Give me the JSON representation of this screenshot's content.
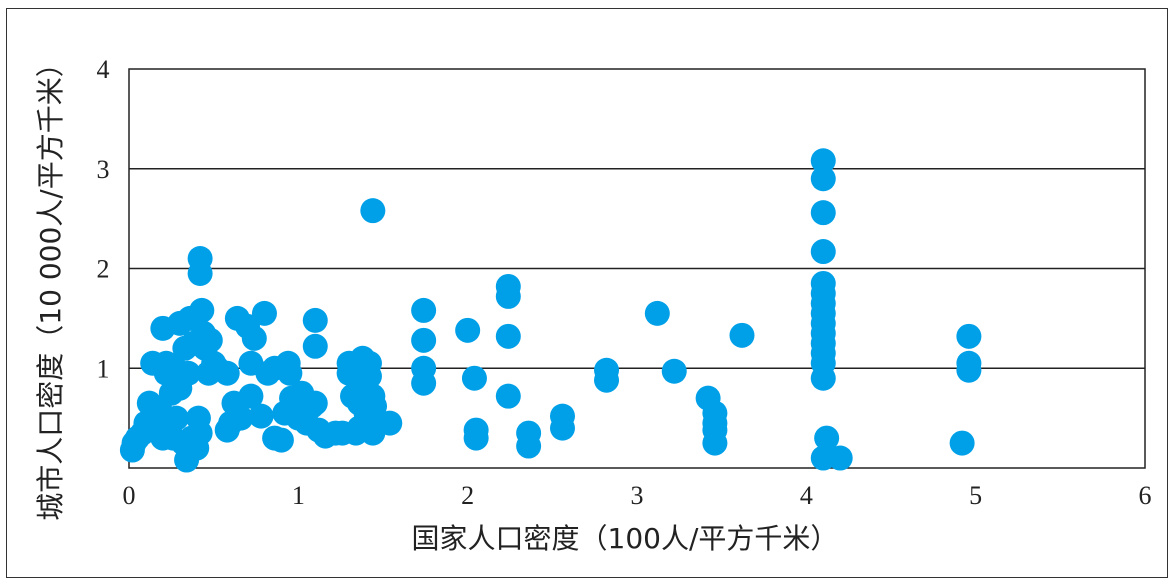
{
  "chart_data": {
    "type": "scatter",
    "xlabel": "国家人口密度（100人/平方千米）",
    "ylabel": "城市人口密度（10 000人/平方千米）",
    "xlim": [
      0,
      6
    ],
    "ylim": [
      0,
      4
    ],
    "x_ticks": [
      "0",
      "1",
      "2",
      "3",
      "4",
      "5",
      "6"
    ],
    "y_ticks": [
      "1",
      "2",
      "3",
      "4"
    ],
    "grid": "horizontal",
    "marker_color": "#00A0E9",
    "points": [
      [
        0.02,
        0.18
      ],
      [
        0.03,
        0.25
      ],
      [
        0.05,
        0.3
      ],
      [
        0.08,
        0.35
      ],
      [
        0.1,
        0.45
      ],
      [
        0.12,
        0.4
      ],
      [
        0.12,
        0.65
      ],
      [
        0.14,
        1.05
      ],
      [
        0.16,
        0.55
      ],
      [
        0.18,
        0.35
      ],
      [
        0.18,
        0.6
      ],
      [
        0.2,
        0.3
      ],
      [
        0.2,
        1.4
      ],
      [
        0.22,
        0.95
      ],
      [
        0.22,
        1.05
      ],
      [
        0.24,
        0.45
      ],
      [
        0.25,
        0.75
      ],
      [
        0.26,
        0.3
      ],
      [
        0.27,
        1.0
      ],
      [
        0.28,
        0.5
      ],
      [
        0.29,
        0.9
      ],
      [
        0.3,
        0.8
      ],
      [
        0.3,
        1.45
      ],
      [
        0.32,
        0.25
      ],
      [
        0.33,
        1.2
      ],
      [
        0.34,
        0.08
      ],
      [
        0.35,
        0.95
      ],
      [
        0.36,
        1.5
      ],
      [
        0.37,
        0.3
      ],
      [
        0.38,
        1.25
      ],
      [
        0.4,
        0.2
      ],
      [
        0.41,
        0.5
      ],
      [
        0.42,
        2.1
      ],
      [
        0.42,
        1.95
      ],
      [
        0.42,
        0.35
      ],
      [
        0.43,
        1.58
      ],
      [
        0.44,
        1.35
      ],
      [
        0.45,
        1.2
      ],
      [
        0.47,
        0.95
      ],
      [
        0.48,
        1.28
      ],
      [
        0.5,
        1.05
      ],
      [
        0.52,
        1.0
      ],
      [
        0.58,
        0.95
      ],
      [
        0.58,
        0.38
      ],
      [
        0.6,
        0.45
      ],
      [
        0.62,
        0.65
      ],
      [
        0.64,
        1.5
      ],
      [
        0.66,
        0.5
      ],
      [
        0.7,
        1.42
      ],
      [
        0.72,
        0.72
      ],
      [
        0.72,
        1.05
      ],
      [
        0.74,
        1.3
      ],
      [
        0.78,
        0.52
      ],
      [
        0.8,
        1.55
      ],
      [
        0.82,
        0.95
      ],
      [
        0.86,
        1.0
      ],
      [
        0.86,
        0.3
      ],
      [
        0.9,
        0.28
      ],
      [
        0.92,
        0.55
      ],
      [
        0.94,
        1.05
      ],
      [
        0.95,
        0.95
      ],
      [
        0.96,
        0.7
      ],
      [
        1.0,
        0.5
      ],
      [
        1.02,
        0.75
      ],
      [
        1.05,
        0.45
      ],
      [
        1.08,
        0.62
      ],
      [
        1.1,
        1.48
      ],
      [
        1.1,
        1.22
      ],
      [
        1.1,
        0.65
      ],
      [
        1.12,
        0.38
      ],
      [
        1.16,
        0.32
      ],
      [
        1.22,
        0.35
      ],
      [
        1.26,
        0.35
      ],
      [
        1.3,
        1.05
      ],
      [
        1.3,
        0.95
      ],
      [
        1.32,
        0.72
      ],
      [
        1.34,
        0.35
      ],
      [
        1.36,
        0.65
      ],
      [
        1.36,
        0.4
      ],
      [
        1.38,
        0.82
      ],
      [
        1.38,
        1.1
      ],
      [
        1.4,
        0.55
      ],
      [
        1.42,
        1.05
      ],
      [
        1.42,
        0.92
      ],
      [
        1.43,
        0.45
      ],
      [
        1.44,
        0.35
      ],
      [
        1.44,
        0.72
      ],
      [
        1.45,
        0.62
      ],
      [
        1.44,
        2.58
      ],
      [
        1.54,
        0.45
      ],
      [
        1.74,
        1.58
      ],
      [
        1.74,
        1.28
      ],
      [
        1.74,
        1.0
      ],
      [
        1.74,
        0.85
      ],
      [
        2.0,
        1.38
      ],
      [
        2.04,
        0.9
      ],
      [
        2.05,
        0.3
      ],
      [
        2.05,
        0.38
      ],
      [
        2.24,
        1.82
      ],
      [
        2.24,
        1.72
      ],
      [
        2.24,
        1.32
      ],
      [
        2.24,
        0.72
      ],
      [
        2.36,
        0.35
      ],
      [
        2.36,
        0.22
      ],
      [
        2.56,
        0.52
      ],
      [
        2.56,
        0.4
      ],
      [
        2.82,
        0.98
      ],
      [
        2.82,
        0.88
      ],
      [
        3.12,
        1.55
      ],
      [
        3.22,
        0.97
      ],
      [
        3.42,
        0.7
      ],
      [
        3.46,
        0.55
      ],
      [
        3.46,
        0.45
      ],
      [
        3.46,
        0.38
      ],
      [
        3.46,
        0.25
      ],
      [
        3.62,
        1.33
      ],
      [
        4.1,
        3.08
      ],
      [
        4.1,
        2.9
      ],
      [
        4.1,
        2.56
      ],
      [
        4.1,
        2.17
      ],
      [
        4.1,
        1.85
      ],
      [
        4.1,
        1.75
      ],
      [
        4.1,
        1.65
      ],
      [
        4.1,
        1.55
      ],
      [
        4.1,
        1.45
      ],
      [
        4.1,
        1.35
      ],
      [
        4.1,
        1.25
      ],
      [
        4.1,
        1.15
      ],
      [
        4.1,
        1.05
      ],
      [
        4.1,
        0.9
      ],
      [
        4.12,
        0.3
      ],
      [
        4.1,
        0.1
      ],
      [
        4.2,
        0.1
      ],
      [
        4.92,
        0.25
      ],
      [
        4.96,
        1.32
      ],
      [
        4.96,
        1.05
      ],
      [
        4.96,
        0.98
      ]
    ]
  }
}
